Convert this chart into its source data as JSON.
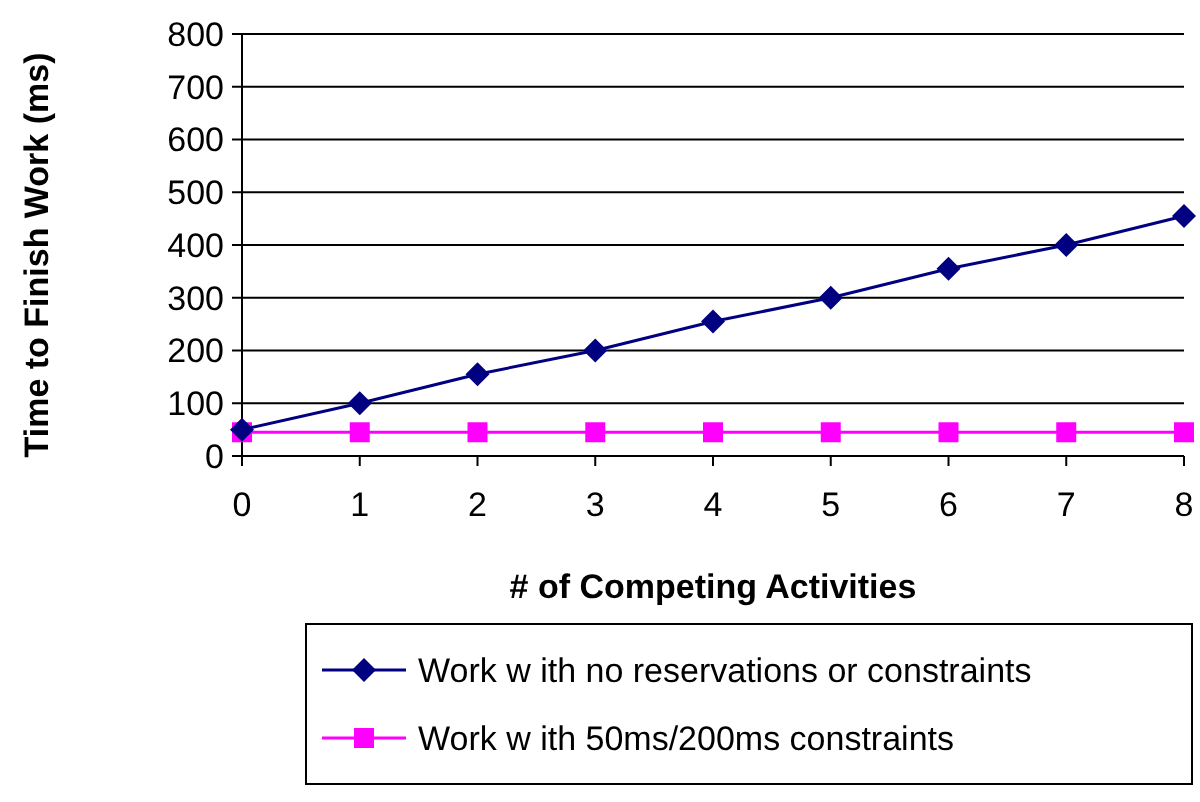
{
  "chart_data": {
    "type": "line",
    "xlabel": "# of Competing Activities",
    "ylabel": "Time to Finish Work (ms)",
    "x": [
      0,
      1,
      2,
      3,
      4,
      5,
      6,
      7,
      8
    ],
    "series": [
      {
        "name": "Work w ith no reservations or constraints",
        "color": "#000080",
        "marker": "diamond",
        "values": [
          50,
          100,
          155,
          200,
          255,
          300,
          355,
          400,
          455
        ]
      },
      {
        "name": "Work w ith 50ms/200ms constraints",
        "color": "#ff00ff",
        "marker": "square",
        "values": [
          45,
          45,
          45,
          45,
          45,
          45,
          45,
          45,
          45
        ]
      }
    ],
    "xlim": [
      0,
      8
    ],
    "xticks": [
      0,
      1,
      2,
      3,
      4,
      5,
      6,
      7,
      8
    ],
    "ylim": [
      0,
      800
    ],
    "yticks": [
      0,
      100,
      200,
      300,
      400,
      500,
      600,
      700,
      800
    ],
    "grid": "y",
    "legend": "bottom",
    "line_style": "solid"
  }
}
